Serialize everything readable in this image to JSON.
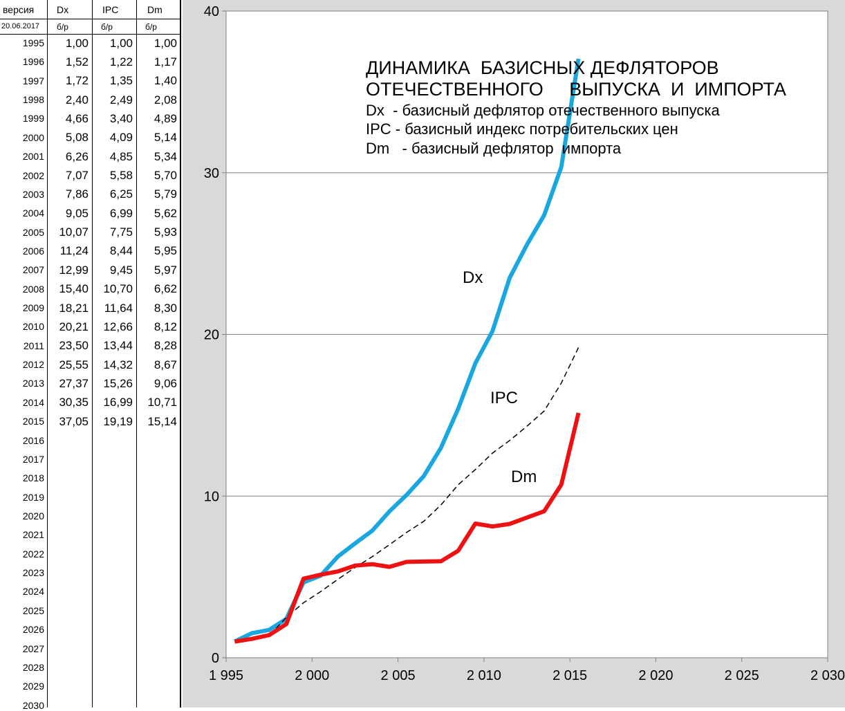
{
  "table": {
    "header": {
      "version_label": "версия",
      "date": "20.06.2017",
      "cols": [
        "Dx",
        "IPC",
        "Dm"
      ],
      "unit": "б/р"
    },
    "rows": [
      {
        "year": "1995",
        "dx": "1,00",
        "ipc": "1,00",
        "dm": "1,00"
      },
      {
        "year": "1996",
        "dx": "1,52",
        "ipc": "1,22",
        "dm": "1,17"
      },
      {
        "year": "1997",
        "dx": "1,72",
        "ipc": "1,35",
        "dm": "1,40"
      },
      {
        "year": "1998",
        "dx": "2,40",
        "ipc": "2,49",
        "dm": "2,08"
      },
      {
        "year": "1999",
        "dx": "4,66",
        "ipc": "3,40",
        "dm": "4,89"
      },
      {
        "year": "2000",
        "dx": "5,08",
        "ipc": "4,09",
        "dm": "5,14"
      },
      {
        "year": "2001",
        "dx": "6,26",
        "ipc": "4,85",
        "dm": "5,34"
      },
      {
        "year": "2002",
        "dx": "7,07",
        "ipc": "5,58",
        "dm": "5,70"
      },
      {
        "year": "2003",
        "dx": "7,86",
        "ipc": "6,25",
        "dm": "5,79"
      },
      {
        "year": "2004",
        "dx": "9,05",
        "ipc": "6,99",
        "dm": "5,62"
      },
      {
        "year": "2005",
        "dx": "10,07",
        "ipc": "7,75",
        "dm": "5,93"
      },
      {
        "year": "2006",
        "dx": "11,24",
        "ipc": "8,44",
        "dm": "5,95"
      },
      {
        "year": "2007",
        "dx": "12,99",
        "ipc": "9,45",
        "dm": "5,97"
      },
      {
        "year": "2008",
        "dx": "15,40",
        "ipc": "10,70",
        "dm": "6,62"
      },
      {
        "year": "2009",
        "dx": "18,21",
        "ipc": "11,64",
        "dm": "8,30"
      },
      {
        "year": "2010",
        "dx": "20,21",
        "ipc": "12,66",
        "dm": "8,12"
      },
      {
        "year": "2011",
        "dx": "23,50",
        "ipc": "13,44",
        "dm": "8,28"
      },
      {
        "year": "2012",
        "dx": "25,55",
        "ipc": "14,32",
        "dm": "8,67"
      },
      {
        "year": "2013",
        "dx": "27,37",
        "ipc": "15,26",
        "dm": "9,06"
      },
      {
        "year": "2014",
        "dx": "30,35",
        "ipc": "16,99",
        "dm": "10,71"
      },
      {
        "year": "2015",
        "dx": "37,05",
        "ipc": "19,19",
        "dm": "15,14"
      },
      {
        "year": "2016",
        "dx": "",
        "ipc": "",
        "dm": ""
      },
      {
        "year": "2017",
        "dx": "",
        "ipc": "",
        "dm": ""
      },
      {
        "year": "2018",
        "dx": "",
        "ipc": "",
        "dm": ""
      },
      {
        "year": "2019",
        "dx": "",
        "ipc": "",
        "dm": ""
      },
      {
        "year": "2020",
        "dx": "",
        "ipc": "",
        "dm": ""
      },
      {
        "year": "2021",
        "dx": "",
        "ipc": "",
        "dm": ""
      },
      {
        "year": "2022",
        "dx": "",
        "ipc": "",
        "dm": ""
      },
      {
        "year": "2023",
        "dx": "",
        "ipc": "",
        "dm": ""
      },
      {
        "year": "2024",
        "dx": "",
        "ipc": "",
        "dm": ""
      },
      {
        "year": "2025",
        "dx": "",
        "ipc": "",
        "dm": ""
      },
      {
        "year": "2026",
        "dx": "",
        "ipc": "",
        "dm": ""
      },
      {
        "year": "2027",
        "dx": "",
        "ipc": "",
        "dm": ""
      },
      {
        "year": "2028",
        "dx": "",
        "ipc": "",
        "dm": ""
      },
      {
        "year": "2029",
        "dx": "",
        "ipc": "",
        "dm": ""
      },
      {
        "year": "2030",
        "dx": "",
        "ipc": "",
        "dm": ""
      }
    ]
  },
  "chart_data": {
    "type": "line",
    "title_lines": [
      "ДИНАМИКА  БАЗИСНЫХ ДЕФЛЯТОРОВ",
      "ОТЕЧЕСТВЕННОГО     ВЫПУСКА  И  ИМПОРТА"
    ],
    "legend_lines": [
      "Dx  - базисный дефлятор отечественного выпуска",
      "IPC - базисный индекс потребительских цен",
      "Dm   - базисный дефлятор  импорта"
    ],
    "xlim": [
      1995,
      2030
    ],
    "ylim": [
      0,
      40
    ],
    "x_ticks": [
      1995,
      2000,
      2005,
      2010,
      2015,
      2020,
      2025,
      2030
    ],
    "x_tick_labels": [
      "1 995",
      "2 000",
      "2 005",
      "2 010",
      "2 015",
      "2 020",
      "2 025",
      "2 030"
    ],
    "y_ticks": [
      0,
      10,
      20,
      30,
      40
    ],
    "y_tick_labels": [
      "0",
      "10",
      "20",
      "30",
      "40"
    ],
    "grid": "horizontal",
    "x": [
      1995,
      1996,
      1997,
      1998,
      1999,
      2000,
      2001,
      2002,
      2003,
      2004,
      2005,
      2006,
      2007,
      2008,
      2009,
      2010,
      2011,
      2012,
      2013,
      2014,
      2015
    ],
    "series": [
      {
        "name": "Dx",
        "color": "#1aa7e0",
        "style": "solid-thick",
        "values": [
          1.0,
          1.52,
          1.72,
          2.4,
          4.66,
          5.08,
          6.26,
          7.07,
          7.86,
          9.05,
          10.07,
          11.24,
          12.99,
          15.4,
          18.21,
          20.21,
          23.5,
          25.55,
          27.37,
          30.35,
          37.05
        ]
      },
      {
        "name": "IPC",
        "color": "#000000",
        "style": "dashed-thin",
        "values": [
          1.0,
          1.22,
          1.35,
          2.49,
          3.4,
          4.09,
          4.85,
          5.58,
          6.25,
          6.99,
          7.75,
          8.44,
          9.45,
          10.7,
          11.64,
          12.66,
          13.44,
          14.32,
          15.26,
          16.99,
          19.19
        ]
      },
      {
        "name": "Dm",
        "color": "#ee1111",
        "style": "solid-thick",
        "values": [
          1.0,
          1.17,
          1.4,
          2.08,
          4.89,
          5.14,
          5.34,
          5.7,
          5.79,
          5.62,
          5.93,
          5.95,
          5.97,
          6.62,
          8.3,
          8.12,
          8.28,
          8.67,
          9.06,
          10.71,
          15.14
        ]
      }
    ]
  }
}
